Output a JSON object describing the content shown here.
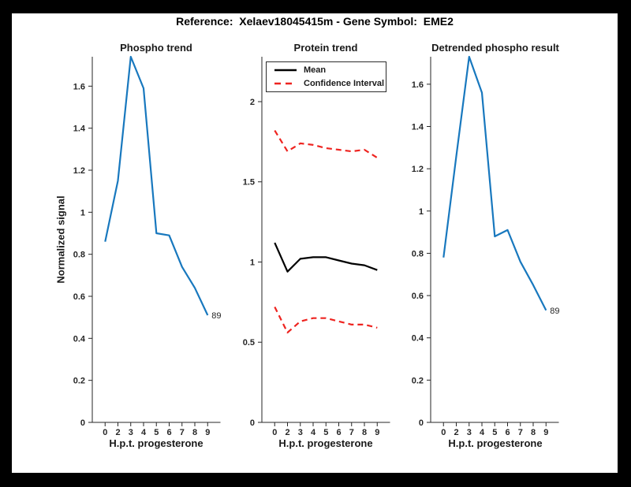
{
  "figure": {
    "title": "Reference:  Xelaev18045415m - Gene Symbol:  EME2"
  },
  "colors": {
    "axis": "#262626",
    "blue": "#1878be",
    "red": "#ee2420",
    "black": "#000000"
  },
  "chart_data": [
    {
      "type": "line",
      "title": "Phospho trend",
      "xlabel": "H.p.t. progesterone",
      "ylabel": "Normalized signal",
      "x": [
        0,
        2,
        3,
        4,
        5,
        6,
        7,
        8,
        9
      ],
      "ylim": [
        0,
        1.74
      ],
      "yticks": [
        0,
        0.2,
        0.4,
        0.6,
        0.8,
        1,
        1.2,
        1.4,
        1.6
      ],
      "grid": false,
      "series": [
        {
          "name": "Phospho",
          "color": "blue",
          "style": "solid",
          "values": [
            0.86,
            1.15,
            1.74,
            1.59,
            0.9,
            0.89,
            0.74,
            0.64,
            0.51
          ]
        }
      ],
      "end_label": "89"
    },
    {
      "type": "line",
      "title": "Protein trend",
      "xlabel": "H.p.t. progesterone",
      "ylabel": "",
      "x": [
        0,
        2,
        3,
        4,
        5,
        6,
        7,
        8,
        9
      ],
      "ylim": [
        0,
        2.28
      ],
      "yticks": [
        0,
        0.5,
        1,
        1.5,
        2
      ],
      "grid": false,
      "legend_position": "top-left",
      "series": [
        {
          "name": "Mean",
          "color": "black",
          "style": "solid",
          "values": [
            1.12,
            0.94,
            1.02,
            1.03,
            1.03,
            1.01,
            0.99,
            0.98,
            0.95
          ]
        },
        {
          "name": "Confidence Interval",
          "color": "red",
          "style": "dashed",
          "values": [
            1.82,
            1.69,
            1.74,
            1.73,
            1.71,
            1.7,
            1.69,
            1.7,
            1.65
          ]
        },
        {
          "name": "Confidence Interval",
          "color": "red",
          "style": "dashed",
          "values": [
            0.72,
            0.56,
            0.63,
            0.65,
            0.65,
            0.63,
            0.61,
            0.61,
            0.59
          ]
        }
      ]
    },
    {
      "type": "line",
      "title": "Detrended phospho result",
      "xlabel": "H.p.t. progesterone",
      "ylabel": "",
      "x": [
        0,
        2,
        3,
        4,
        5,
        6,
        7,
        8,
        9
      ],
      "ylim": [
        0,
        1.73
      ],
      "yticks": [
        0,
        0.2,
        0.4,
        0.6,
        0.8,
        1,
        1.2,
        1.4,
        1.6
      ],
      "grid": false,
      "series": [
        {
          "name": "Detrended phospho",
          "color": "blue",
          "style": "solid",
          "values": [
            0.78,
            1.26,
            1.73,
            1.56,
            0.88,
            0.91,
            0.76,
            0.65,
            0.53
          ]
        }
      ],
      "end_label": "89"
    }
  ]
}
